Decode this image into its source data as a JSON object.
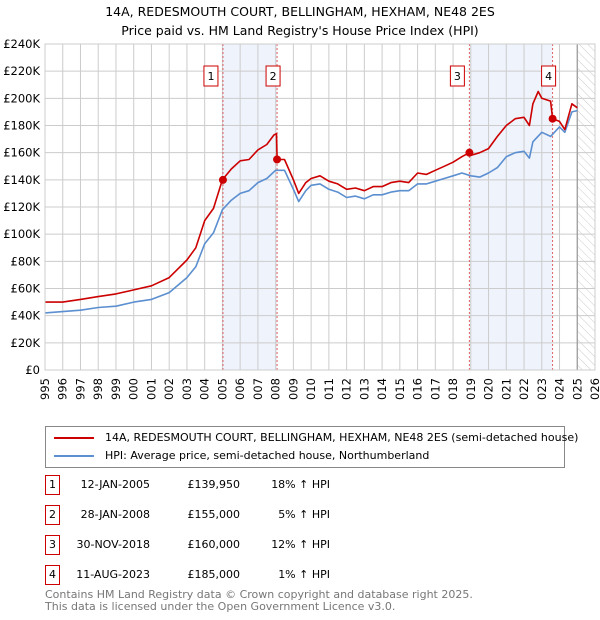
{
  "chart_data": {
    "type": "line",
    "title": "14A, REDESMOUTH COURT, BELLINGHAM, HEXHAM, NE48 2ES",
    "subtitle": "Price paid vs. HM Land Registry's House Price Index (HPI)",
    "xlim": [
      1995,
      2026
    ],
    "ylim": [
      0,
      240000
    ],
    "x_ticks": [
      "1995",
      "1996",
      "1997",
      "1998",
      "1999",
      "2000",
      "2001",
      "2002",
      "2003",
      "2004",
      "2005",
      "2006",
      "2007",
      "2008",
      "2009",
      "2010",
      "2011",
      "2012",
      "2013",
      "2014",
      "2015",
      "2016",
      "2017",
      "2018",
      "2019",
      "2020",
      "2021",
      "2022",
      "2023",
      "2024",
      "2025",
      "2026"
    ],
    "y_ticks": [
      "£0",
      "£20K",
      "£40K",
      "£60K",
      "£80K",
      "£100K",
      "£120K",
      "£140K",
      "£160K",
      "£180K",
      "£200K",
      "£220K",
      "£240K"
    ],
    "grid": true,
    "series": [
      {
        "name": "14A, REDESMOUTH COURT, BELLINGHAM, HEXHAM, NE48 2ES (semi-detached house)",
        "color": "#cc0000",
        "x": [
          1995,
          1996,
          1997,
          1998,
          1999,
          2000,
          2001,
          2002,
          2003,
          2003.5,
          2004,
          2004.5,
          2005,
          2005.5,
          2006,
          2006.5,
          2007,
          2007.5,
          2007.9,
          2008.05,
          2008.08,
          2008.5,
          2009,
          2009.3,
          2009.7,
          2010,
          2010.5,
          2011,
          2011.5,
          2012,
          2012.5,
          2013,
          2013.5,
          2014,
          2014.5,
          2015,
          2015.5,
          2016,
          2016.5,
          2017,
          2017.5,
          2018,
          2018.5,
          2018.92,
          2019,
          2019.5,
          2020,
          2020.5,
          2021,
          2021.5,
          2022,
          2022.3,
          2022.5,
          2022.8,
          2023,
          2023.5,
          2023.61,
          2024,
          2024.3,
          2024.7,
          2025
        ],
        "y": [
          50000,
          50000,
          52000,
          54000,
          56000,
          59000,
          62000,
          68000,
          81000,
          90000,
          110000,
          119000,
          140000,
          148000,
          154000,
          155000,
          162000,
          166000,
          173000,
          174000,
          155000,
          155000,
          140000,
          130000,
          138000,
          141000,
          143000,
          139000,
          137000,
          133000,
          134000,
          132000,
          135000,
          135000,
          138000,
          139000,
          138000,
          145000,
          144000,
          147000,
          150000,
          153000,
          157000,
          160000,
          158000,
          160000,
          163000,
          172000,
          180000,
          185000,
          186000,
          180000,
          196000,
          205000,
          200000,
          198000,
          185000,
          183000,
          177000,
          196000,
          193000
        ]
      },
      {
        "name": "HPI: Average price, semi-detached house, Northumberland",
        "color": "#5b8fd0",
        "x": [
          1995,
          1996,
          1997,
          1998,
          1999,
          2000,
          2001,
          2002,
          2003,
          2003.5,
          2004,
          2004.5,
          2005,
          2005.5,
          2006,
          2006.5,
          2007,
          2007.5,
          2008,
          2008.5,
          2009,
          2009.3,
          2009.7,
          2010,
          2010.5,
          2011,
          2011.5,
          2012,
          2012.5,
          2013,
          2013.5,
          2014,
          2014.5,
          2015,
          2015.5,
          2016,
          2016.5,
          2017,
          2017.5,
          2018,
          2018.5,
          2019,
          2019.5,
          2020,
          2020.5,
          2021,
          2021.5,
          2022,
          2022.3,
          2022.5,
          2023,
          2023.5,
          2024,
          2024.3,
          2024.7,
          2025
        ],
        "y": [
          42000,
          43000,
          44000,
          46000,
          47000,
          50000,
          52000,
          57000,
          68000,
          76000,
          93000,
          101000,
          118000,
          125000,
          130000,
          132000,
          138000,
          141000,
          147000,
          147000,
          133000,
          124000,
          132000,
          136000,
          137000,
          133000,
          131000,
          127000,
          128000,
          126000,
          129000,
          129000,
          131000,
          132000,
          132000,
          137000,
          137000,
          139000,
          141000,
          143000,
          145000,
          143000,
          142000,
          145000,
          149000,
          157000,
          160000,
          161000,
          156000,
          168000,
          175000,
          172000,
          179000,
          175000,
          190000,
          191000
        ]
      }
    ],
    "sales": [
      {
        "label": "1",
        "x": 2005.03,
        "y": 139950
      },
      {
        "label": "2",
        "x": 2008.08,
        "y": 155000
      },
      {
        "label": "3",
        "x": 2018.92,
        "y": 160000
      },
      {
        "label": "4",
        "x": 2023.61,
        "y": 185000
      }
    ],
    "shaded_ranges": [
      [
        2005.03,
        2008.08
      ],
      [
        2018.92,
        2023.61
      ]
    ],
    "forecast_hatch_from": 2025,
    "legend_position": "below"
  },
  "legend": {
    "property": "14A, REDESMOUTH COURT, BELLINGHAM, HEXHAM, NE48 2ES (semi-detached house)",
    "hpi": "HPI: Average price, semi-detached house, Northumberland"
  },
  "table": [
    {
      "num": "1",
      "date": "12-JAN-2005",
      "price": "£139,950",
      "pct": "18% ↑ HPI"
    },
    {
      "num": "2",
      "date": "28-JAN-2008",
      "price": "£155,000",
      "pct": "5% ↑ HPI"
    },
    {
      "num": "3",
      "date": "30-NOV-2018",
      "price": "£160,000",
      "pct": "12% ↑ HPI"
    },
    {
      "num": "4",
      "date": "11-AUG-2023",
      "price": "£185,000",
      "pct": "1% ↑ HPI"
    }
  ],
  "footer": {
    "line1": "Contains HM Land Registry data © Crown copyright and database right 2025.",
    "line2": "This data is licensed under the Open Government Licence v3.0."
  }
}
